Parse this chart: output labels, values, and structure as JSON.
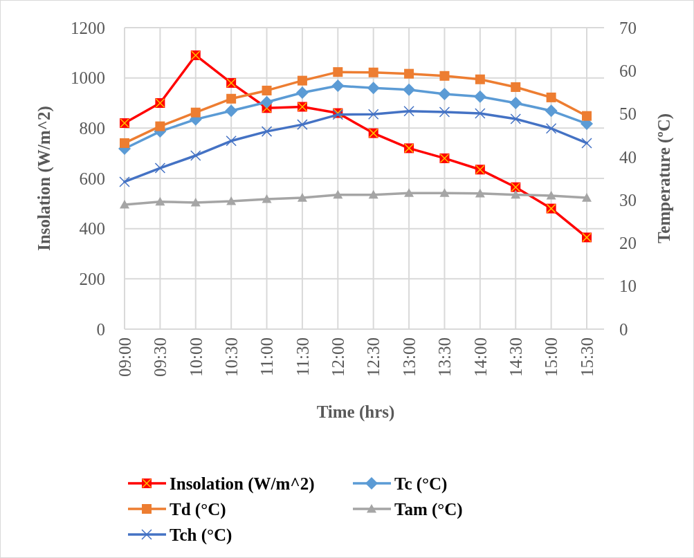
{
  "chart_data": {
    "type": "line",
    "xlabel": "Time (hrs)",
    "ylabel": "Insolation (W/m^2)",
    "y2label": "Temperature (ºC)",
    "categories": [
      "09:00",
      "09:30",
      "10:00",
      "10:30",
      "11:00",
      "11:30",
      "12:00",
      "12:30",
      "13:00",
      "13:30",
      "14:00",
      "14:30",
      "15:00",
      "15:30"
    ],
    "ylim": [
      0,
      1200
    ],
    "yticks": [
      0,
      200,
      400,
      600,
      800,
      1000,
      1200
    ],
    "y2lim": [
      0,
      70
    ],
    "y2ticks": [
      0,
      10,
      20,
      30,
      40,
      50,
      60,
      70
    ],
    "grid": true,
    "legend": "bottom",
    "line_style": "solid",
    "series": [
      {
        "name": "Insolation (W/m^2)",
        "color": "#ff0000",
        "marker": "square",
        "values": [
          820,
          900,
          1090,
          980,
          880,
          885,
          860,
          780,
          720,
          680,
          635,
          565,
          480,
          365
        ]
      },
      {
        "name": "Tc (°C)",
        "color": "#5b9bd5",
        "marker": "diamond",
        "axis": "y2",
        "values": [
          41.9,
          45.9,
          48.7,
          50.7,
          52.7,
          54.9,
          56.5,
          56.0,
          55.6,
          54.6,
          54.0,
          52.5,
          50.7,
          47.7
        ]
      },
      {
        "name": "Td (°C)",
        "color": "#ed7d31",
        "marker": "square",
        "axis": "y2",
        "values": [
          43.2,
          47.1,
          50.3,
          53.5,
          55.4,
          57.7,
          59.7,
          59.6,
          59.3,
          58.8,
          58.0,
          56.2,
          53.8,
          49.5
        ]
      },
      {
        "name": "Tam (°C)",
        "color": "#a5a5a5",
        "marker": "triangle",
        "axis": "y2",
        "values": [
          28.9,
          29.6,
          29.4,
          29.7,
          30.2,
          30.5,
          31.2,
          31.2,
          31.6,
          31.6,
          31.5,
          31.2,
          31.0,
          30.5
        ]
      },
      {
        "name": "Tch (°C)",
        "color": "#4472c4",
        "marker": "cross",
        "axis": "y2",
        "values": [
          34.2,
          37.4,
          40.3,
          43.7,
          45.9,
          47.5,
          49.8,
          49.9,
          50.6,
          50.4,
          50.1,
          48.8,
          46.6,
          43.2
        ]
      }
    ]
  }
}
